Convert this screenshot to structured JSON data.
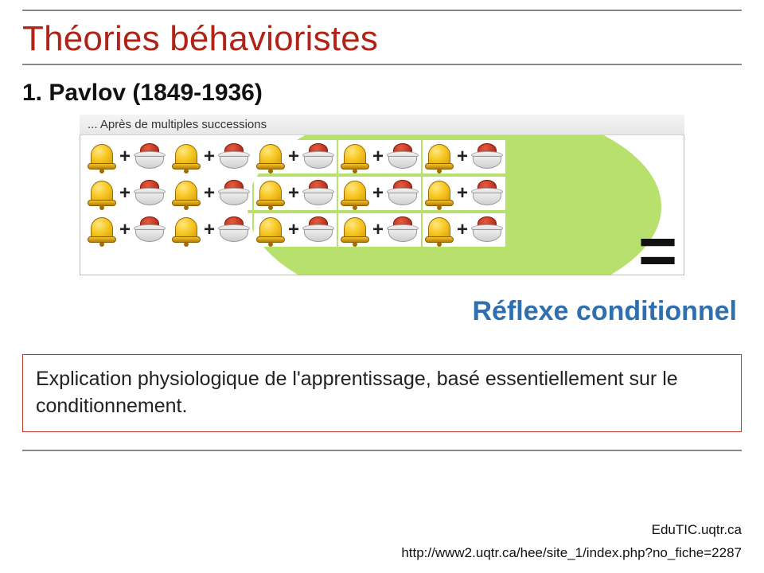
{
  "colors": {
    "title": "#b02418",
    "subtitle_accent": "#2f6fb0",
    "box_border": "#c0392b",
    "green_blob": "#b7e06d"
  },
  "title": "Théories béhavioristes",
  "section": "1. Pavlov (1849-1936)",
  "diagram": {
    "caption": "... Après de multiples successions",
    "rows": 3,
    "pairs_per_row": 5,
    "equals": "="
  },
  "reflex_label": "Réflexe conditionnel",
  "explanation": "Explication physiologique de l'apprentissage, basé essentiellement sur le conditionnement.",
  "footer": {
    "site": "EduTIC.uqtr.ca",
    "url": "http://www2.uqtr.ca/hee/site_1/index.php?no_fiche=2287"
  }
}
